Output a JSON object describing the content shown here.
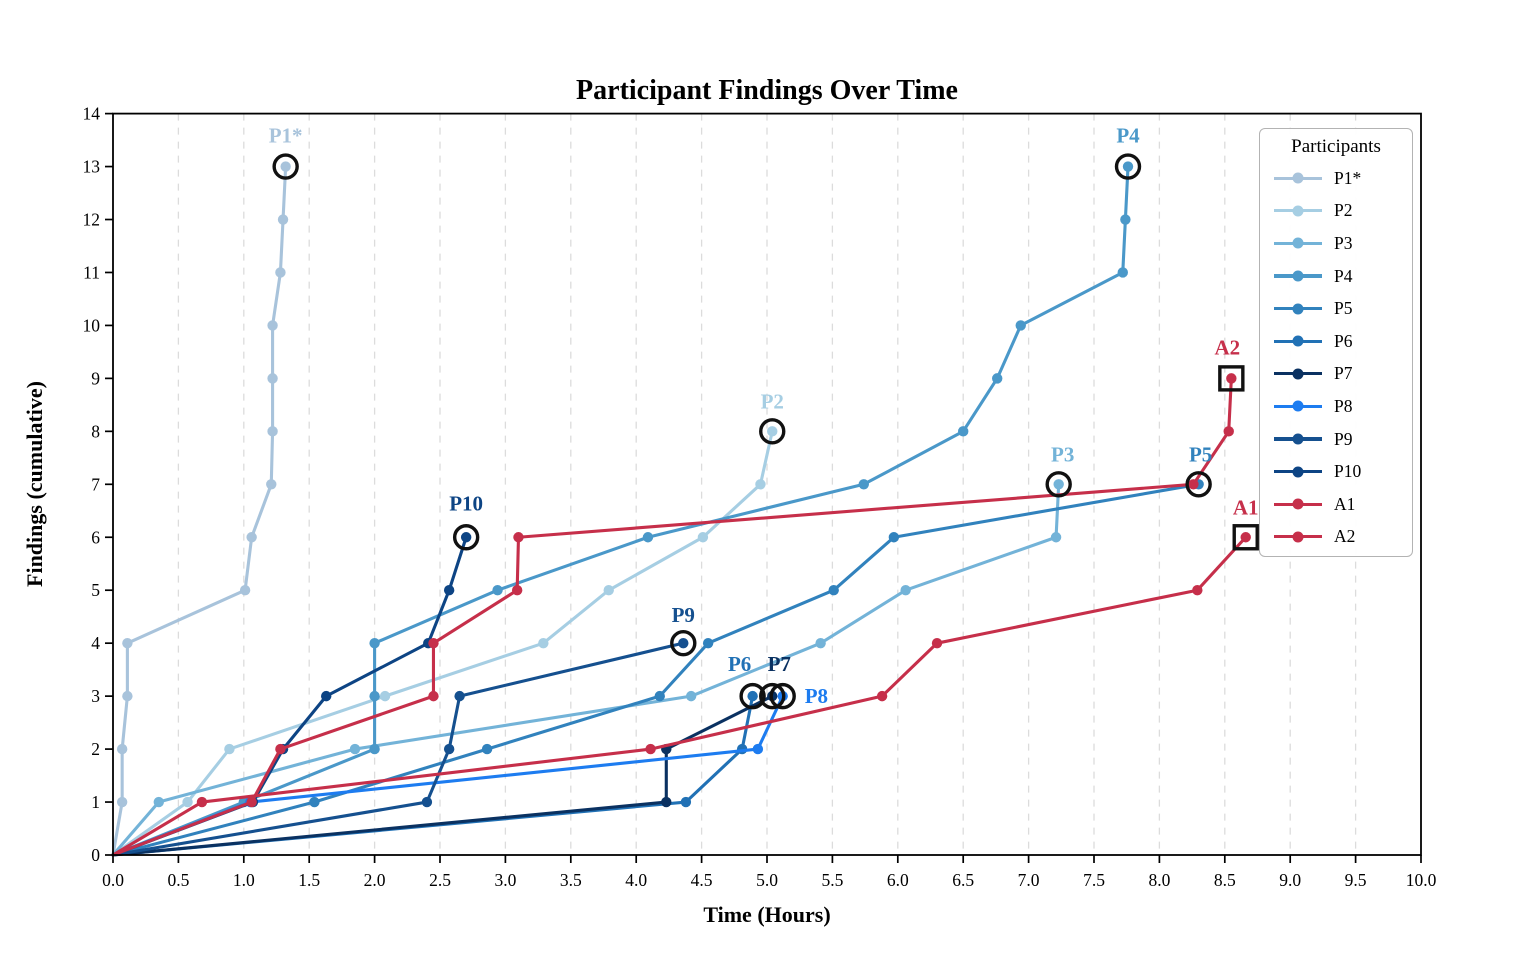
{
  "title": "Participant Findings Over Time",
  "legend": {
    "title": "Participants"
  },
  "axes": {
    "x_label": "Time (Hours)",
    "y_label": "Findings (cumulative)"
  },
  "chart_data": {
    "type": "line",
    "title": "Participant Findings Over Time",
    "xlabel": "Time (Hours)",
    "ylabel": "Findings (cumulative)",
    "xlim": [
      0,
      10
    ],
    "ylim": [
      0,
      14
    ],
    "x_tick_step": 0.5,
    "y_tick_step": 1,
    "x_tick_decimals": 1,
    "grid": "vertical dashed gridlines every 0.5 h",
    "grid_color": "#dcdcdc",
    "legend_position": "upper right",
    "legend_title": "Participants",
    "note": "Each series is cumulative findings vs time; final point of P-series ringed with black circle, A-series boxed with black square.",
    "series": [
      {
        "name": "P1*",
        "color": "#a8c3db",
        "end_marker": "circle",
        "label_dx": 0,
        "label_dy": -24,
        "label_anchor": "middle",
        "points": [
          [
            0,
            0
          ],
          [
            0.07,
            1
          ],
          [
            0.07,
            2
          ],
          [
            0.11,
            3
          ],
          [
            0.11,
            4
          ],
          [
            1.01,
            5
          ],
          [
            1.06,
            6
          ],
          [
            1.21,
            7
          ],
          [
            1.22,
            8
          ],
          [
            1.22,
            9
          ],
          [
            1.22,
            10
          ],
          [
            1.28,
            11
          ],
          [
            1.3,
            12
          ],
          [
            1.32,
            13
          ]
        ]
      },
      {
        "name": "P2",
        "color": "#a6cee3",
        "end_marker": "circle",
        "label_dx": 0,
        "label_dy": -23,
        "label_anchor": "middle",
        "points": [
          [
            0,
            0
          ],
          [
            0.57,
            1
          ],
          [
            0.89,
            2
          ],
          [
            2.08,
            3
          ],
          [
            3.29,
            4
          ],
          [
            3.79,
            5
          ],
          [
            4.51,
            6
          ],
          [
            4.95,
            7
          ],
          [
            5.04,
            8
          ]
        ]
      },
      {
        "name": "P3",
        "color": "#73b3d8",
        "end_marker": "circle",
        "label_dx": 4,
        "label_dy": -23,
        "label_anchor": "middle",
        "points": [
          [
            0,
            0
          ],
          [
            0.35,
            1
          ],
          [
            1.85,
            2
          ],
          [
            4.42,
            3
          ],
          [
            5.41,
            4
          ],
          [
            6.06,
            5
          ],
          [
            7.21,
            6
          ],
          [
            7.23,
            7
          ]
        ]
      },
      {
        "name": "P4",
        "color": "#4a98c9",
        "end_marker": "circle",
        "label_dx": 0,
        "label_dy": -24,
        "label_anchor": "middle",
        "points": [
          [
            0,
            0
          ],
          [
            1.0,
            1
          ],
          [
            2.0,
            2
          ],
          [
            2.0,
            3
          ],
          [
            2.0,
            4
          ],
          [
            2.94,
            5
          ],
          [
            4.09,
            6
          ],
          [
            5.74,
            7
          ],
          [
            6.5,
            8
          ],
          [
            6.76,
            9
          ],
          [
            6.94,
            10
          ],
          [
            7.72,
            11
          ],
          [
            7.74,
            12
          ],
          [
            7.76,
            13
          ]
        ]
      },
      {
        "name": "P5",
        "color": "#3182bd",
        "end_marker": "circle",
        "label_dx": 2,
        "label_dy": -23,
        "label_anchor": "middle",
        "points": [
          [
            0,
            0
          ],
          [
            1.54,
            1
          ],
          [
            2.86,
            2
          ],
          [
            4.18,
            3
          ],
          [
            4.55,
            4
          ],
          [
            5.51,
            5
          ],
          [
            5.97,
            6
          ],
          [
            8.3,
            7
          ]
        ]
      },
      {
        "name": "P6",
        "color": "#2171b5",
        "end_marker": "circle",
        "label_dx": -13,
        "label_dy": -25,
        "label_anchor": "middle",
        "points": [
          [
            0,
            0
          ],
          [
            4.38,
            1
          ],
          [
            4.81,
            2
          ],
          [
            4.89,
            3
          ]
        ]
      },
      {
        "name": "P7",
        "color": "#0a3161",
        "end_marker": "circle",
        "label_dx": 7,
        "label_dy": -25,
        "label_anchor": "middle",
        "points": [
          [
            0,
            0
          ],
          [
            4.23,
            1
          ],
          [
            4.23,
            2
          ],
          [
            5.04,
            3
          ]
        ]
      },
      {
        "name": "P8",
        "color": "#1d7cf0",
        "end_marker": "circle",
        "label_dx": 22,
        "label_dy": 7,
        "label_anchor": "start",
        "points": [
          [
            0,
            0
          ],
          [
            1.05,
            1
          ],
          [
            4.93,
            2
          ],
          [
            5.12,
            3
          ]
        ]
      },
      {
        "name": "P9",
        "color": "#15508f",
        "end_marker": "circle",
        "label_dx": 0,
        "label_dy": -21,
        "label_anchor": "middle",
        "points": [
          [
            0,
            0
          ],
          [
            2.4,
            1
          ],
          [
            2.57,
            2
          ],
          [
            2.65,
            3
          ],
          [
            4.36,
            4
          ]
        ]
      },
      {
        "name": "P10",
        "color": "#0d4484",
        "end_marker": "circle",
        "label_dx": 0,
        "label_dy": -27,
        "label_anchor": "middle",
        "points": [
          [
            0,
            0
          ],
          [
            1.07,
            1
          ],
          [
            1.3,
            2
          ],
          [
            1.63,
            3
          ],
          [
            2.41,
            4
          ],
          [
            2.57,
            5
          ],
          [
            2.7,
            6
          ]
        ]
      },
      {
        "name": "A1",
        "color": "#c62f4a",
        "end_marker": "square",
        "label_dx": 0,
        "label_dy": -23,
        "label_anchor": "middle",
        "points": [
          [
            0,
            0
          ],
          [
            0.68,
            1
          ],
          [
            4.11,
            2
          ],
          [
            5.88,
            3
          ],
          [
            6.3,
            4
          ],
          [
            8.29,
            5
          ],
          [
            8.66,
            6
          ]
        ]
      },
      {
        "name": "A2",
        "color": "#c62f4a",
        "end_marker": "square",
        "label_dx": -4,
        "label_dy": -24,
        "label_anchor": "middle",
        "points": [
          [
            0,
            0
          ],
          [
            1.06,
            1
          ],
          [
            1.28,
            2
          ],
          [
            2.45,
            3
          ],
          [
            2.45,
            4
          ],
          [
            3.09,
            5
          ],
          [
            3.1,
            6
          ],
          [
            8.26,
            7
          ],
          [
            8.53,
            8
          ],
          [
            8.55,
            9
          ]
        ]
      }
    ]
  }
}
